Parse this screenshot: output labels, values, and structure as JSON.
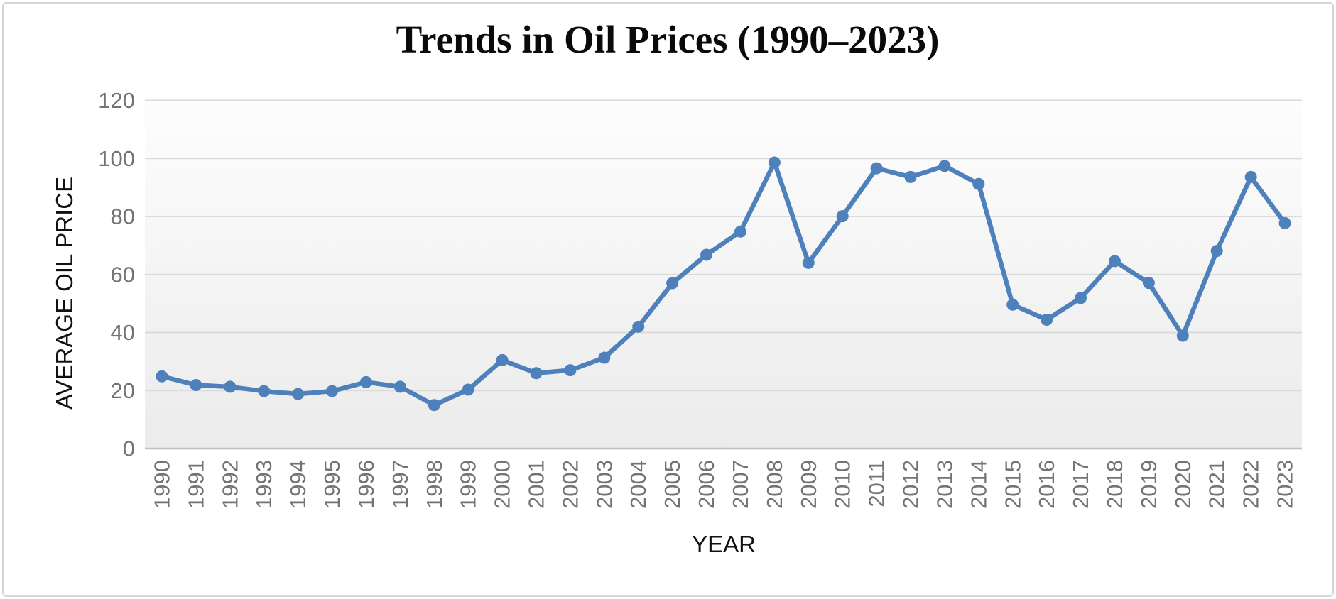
{
  "page": {
    "background_color": "#FFFFFF",
    "border_color": "#D5D5D5"
  },
  "chart_data": {
    "type": "line",
    "title": "Trends in Oil Prices (1990–2023)",
    "xlabel": "YEAR",
    "ylabel": "AVERAGE OIL PRICE",
    "categories": [
      "1990",
      "1991",
      "1992",
      "1993",
      "1994",
      "1995",
      "1996",
      "1997",
      "1998",
      "1999",
      "2000",
      "2001",
      "2002",
      "2003",
      "2004",
      "2005",
      "2006",
      "2007",
      "2008",
      "2009",
      "2010",
      "2011",
      "2012",
      "2013",
      "2014",
      "2015",
      "2016",
      "2017",
      "2018",
      "2019",
      "2020",
      "2021",
      "2022",
      "2023"
    ],
    "series": [
      {
        "name": "AVERAGE OIL PRICE",
        "color": "#4E80BC",
        "marker": "circle",
        "values": [
          24.9,
          21.9,
          21.3,
          19.8,
          18.8,
          19.8,
          22.9,
          21.3,
          15.0,
          20.3,
          30.5,
          26.0,
          27.0,
          31.3,
          42.0,
          57.0,
          66.8,
          74.8,
          98.6,
          64.0,
          80.1,
          96.6,
          93.6,
          97.4,
          91.2,
          49.6,
          44.4,
          51.9,
          64.6,
          57.1,
          38.9,
          68.1,
          93.6,
          77.7
        ]
      }
    ],
    "ylim": [
      0,
      120
    ],
    "y_ticks": [
      0,
      20,
      40,
      60,
      80,
      100,
      120
    ],
    "grid": "horizontal",
    "legend_position": "none",
    "tick_label_color": "#737373",
    "gridline_color": "#DADADA",
    "axis_line_color": "#BFBFBF",
    "plot_bg_top_color": "#FDFDFD",
    "plot_bg_bottom_color": "#EBEBEB"
  }
}
